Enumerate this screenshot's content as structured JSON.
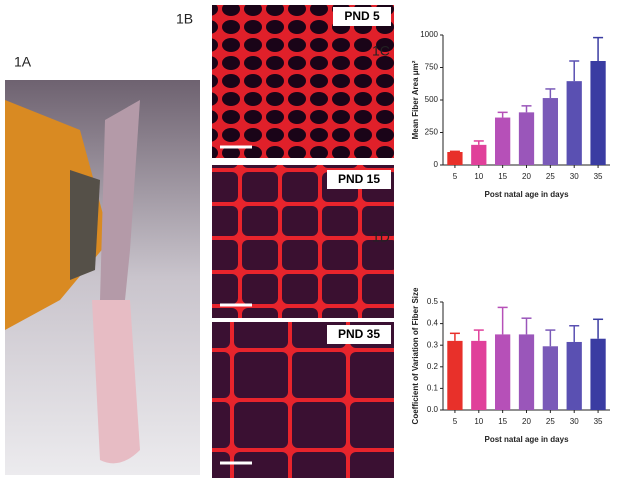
{
  "figure": {
    "panel_labels": [
      "1A",
      "1B",
      "1C",
      "1D"
    ],
    "micrograph_labels": [
      "PND 5",
      "PND 15",
      "PND 35"
    ]
  },
  "chart_data": [
    {
      "type": "bar",
      "y_label": "Mean Fiber Area μm²",
      "x_label": "Post natal age in days",
      "categories": [
        "5",
        "10",
        "15",
        "20",
        "25",
        "30",
        "35"
      ],
      "values": [
        100,
        155,
        365,
        405,
        515,
        645,
        800
      ],
      "errors": [
        5,
        30,
        40,
        50,
        70,
        155,
        180
      ],
      "colors": [
        "#e8302a",
        "#e0409a",
        "#b650b8",
        "#9a56ba",
        "#7a5ab8",
        "#5a50b2",
        "#3a3ca2"
      ],
      "ylim": [
        0,
        1000
      ],
      "yticks": [
        0,
        250,
        500,
        750,
        1000
      ]
    },
    {
      "type": "bar",
      "y_label": "Coefficient of Variation of Fiber Size",
      "x_label": "Post natal age in days",
      "categories": [
        "5",
        "10",
        "15",
        "20",
        "25",
        "30",
        "35"
      ],
      "values": [
        0.32,
        0.32,
        0.35,
        0.35,
        0.295,
        0.315,
        0.33
      ],
      "errors": [
        0.035,
        0.05,
        0.125,
        0.075,
        0.075,
        0.075,
        0.09
      ],
      "colors": [
        "#e8302a",
        "#e0409a",
        "#b650b8",
        "#9a56ba",
        "#7a5ab8",
        "#5a50b2",
        "#3a3ca2"
      ],
      "ylim": [
        0,
        0.5
      ],
      "yticks": [
        {
          "value": 0,
          "label": "0.0"
        },
        0.1,
        0.2,
        0.3,
        0.4,
        0.5
      ]
    }
  ]
}
